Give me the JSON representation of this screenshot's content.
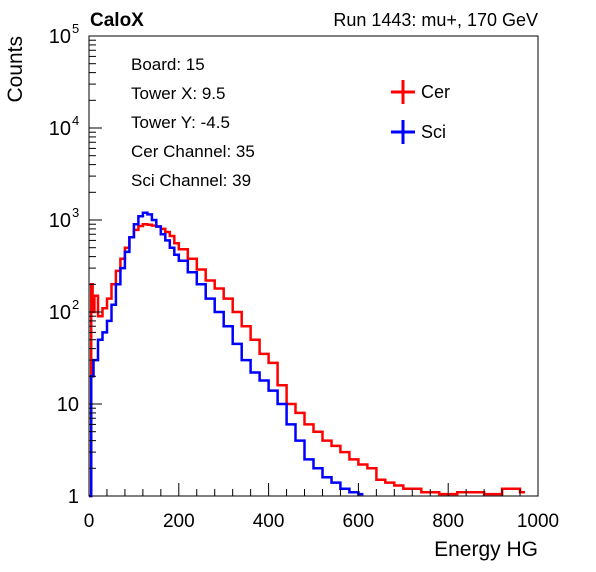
{
  "header": {
    "left_label": "CaloX",
    "right_label": "Run 1443: mu+, 170 GeV"
  },
  "info_lines": [
    "Board: 15",
    "Tower X: 9.5",
    "Tower Y: -4.5",
    "Cer Channel: 35",
    "Sci Channel: 39"
  ],
  "chart_data": {
    "type": "line",
    "xlabel": "Energy HG",
    "ylabel": "Counts",
    "xlim": [
      0,
      1000
    ],
    "ylim": [
      1,
      100000
    ],
    "yscale": "log",
    "x_ticks": [
      "0",
      "200",
      "400",
      "600",
      "800",
      "1000"
    ],
    "y_ticks": [
      {
        "value": 1,
        "base": "1",
        "exp": ""
      },
      {
        "value": 10,
        "base": "10",
        "exp": ""
      },
      {
        "value": 100,
        "base": "10",
        "exp": "2"
      },
      {
        "value": 1000,
        "base": "10",
        "exp": "3"
      },
      {
        "value": 10000,
        "base": "10",
        "exp": "4"
      },
      {
        "value": 100000,
        "base": "10",
        "exp": "5"
      }
    ],
    "legend_position": "top-right",
    "series": [
      {
        "name": "Cer",
        "color": "#ff0000",
        "x": [
          0,
          5,
          8,
          12,
          20,
          30,
          40,
          50,
          60,
          70,
          80,
          90,
          100,
          110,
          120,
          130,
          140,
          150,
          160,
          170,
          180,
          190,
          200,
          220,
          240,
          260,
          280,
          300,
          320,
          340,
          360,
          380,
          400,
          420,
          440,
          460,
          480,
          500,
          520,
          540,
          560,
          580,
          600,
          620,
          640,
          660,
          680,
          700,
          740,
          780,
          820,
          880,
          920,
          960
        ],
        "y": [
          1,
          200,
          100,
          150,
          90,
          110,
          140,
          200,
          280,
          380,
          500,
          650,
          780,
          860,
          900,
          890,
          870,
          850,
          800,
          740,
          670,
          560,
          480,
          380,
          290,
          220,
          180,
          140,
          100,
          70,
          50,
          35,
          28,
          16,
          10,
          8,
          6,
          5,
          4,
          3.5,
          3,
          2.5,
          2.2,
          2,
          1.5,
          1.4,
          1.3,
          1.2,
          1.1,
          1.05,
          1.1,
          1.05,
          1.2,
          1.1
        ]
      },
      {
        "name": "Sci",
        "color": "#0000ff",
        "x": [
          0,
          5,
          10,
          20,
          30,
          40,
          50,
          60,
          70,
          80,
          90,
          100,
          110,
          120,
          130,
          140,
          150,
          160,
          170,
          180,
          190,
          200,
          220,
          240,
          260,
          280,
          300,
          320,
          340,
          360,
          380,
          400,
          420,
          440,
          460,
          480,
          500,
          520,
          540,
          560,
          580,
          600
        ],
        "y": [
          1,
          20,
          30,
          50,
          60,
          80,
          120,
          200,
          300,
          450,
          650,
          900,
          1100,
          1200,
          1150,
          1000,
          850,
          700,
          600,
          500,
          420,
          360,
          270,
          200,
          140,
          100,
          70,
          45,
          30,
          22,
          18,
          14,
          10,
          6,
          4,
          2.5,
          2,
          1.6,
          1.4,
          1.2,
          1.1,
          1.05
        ]
      }
    ]
  }
}
